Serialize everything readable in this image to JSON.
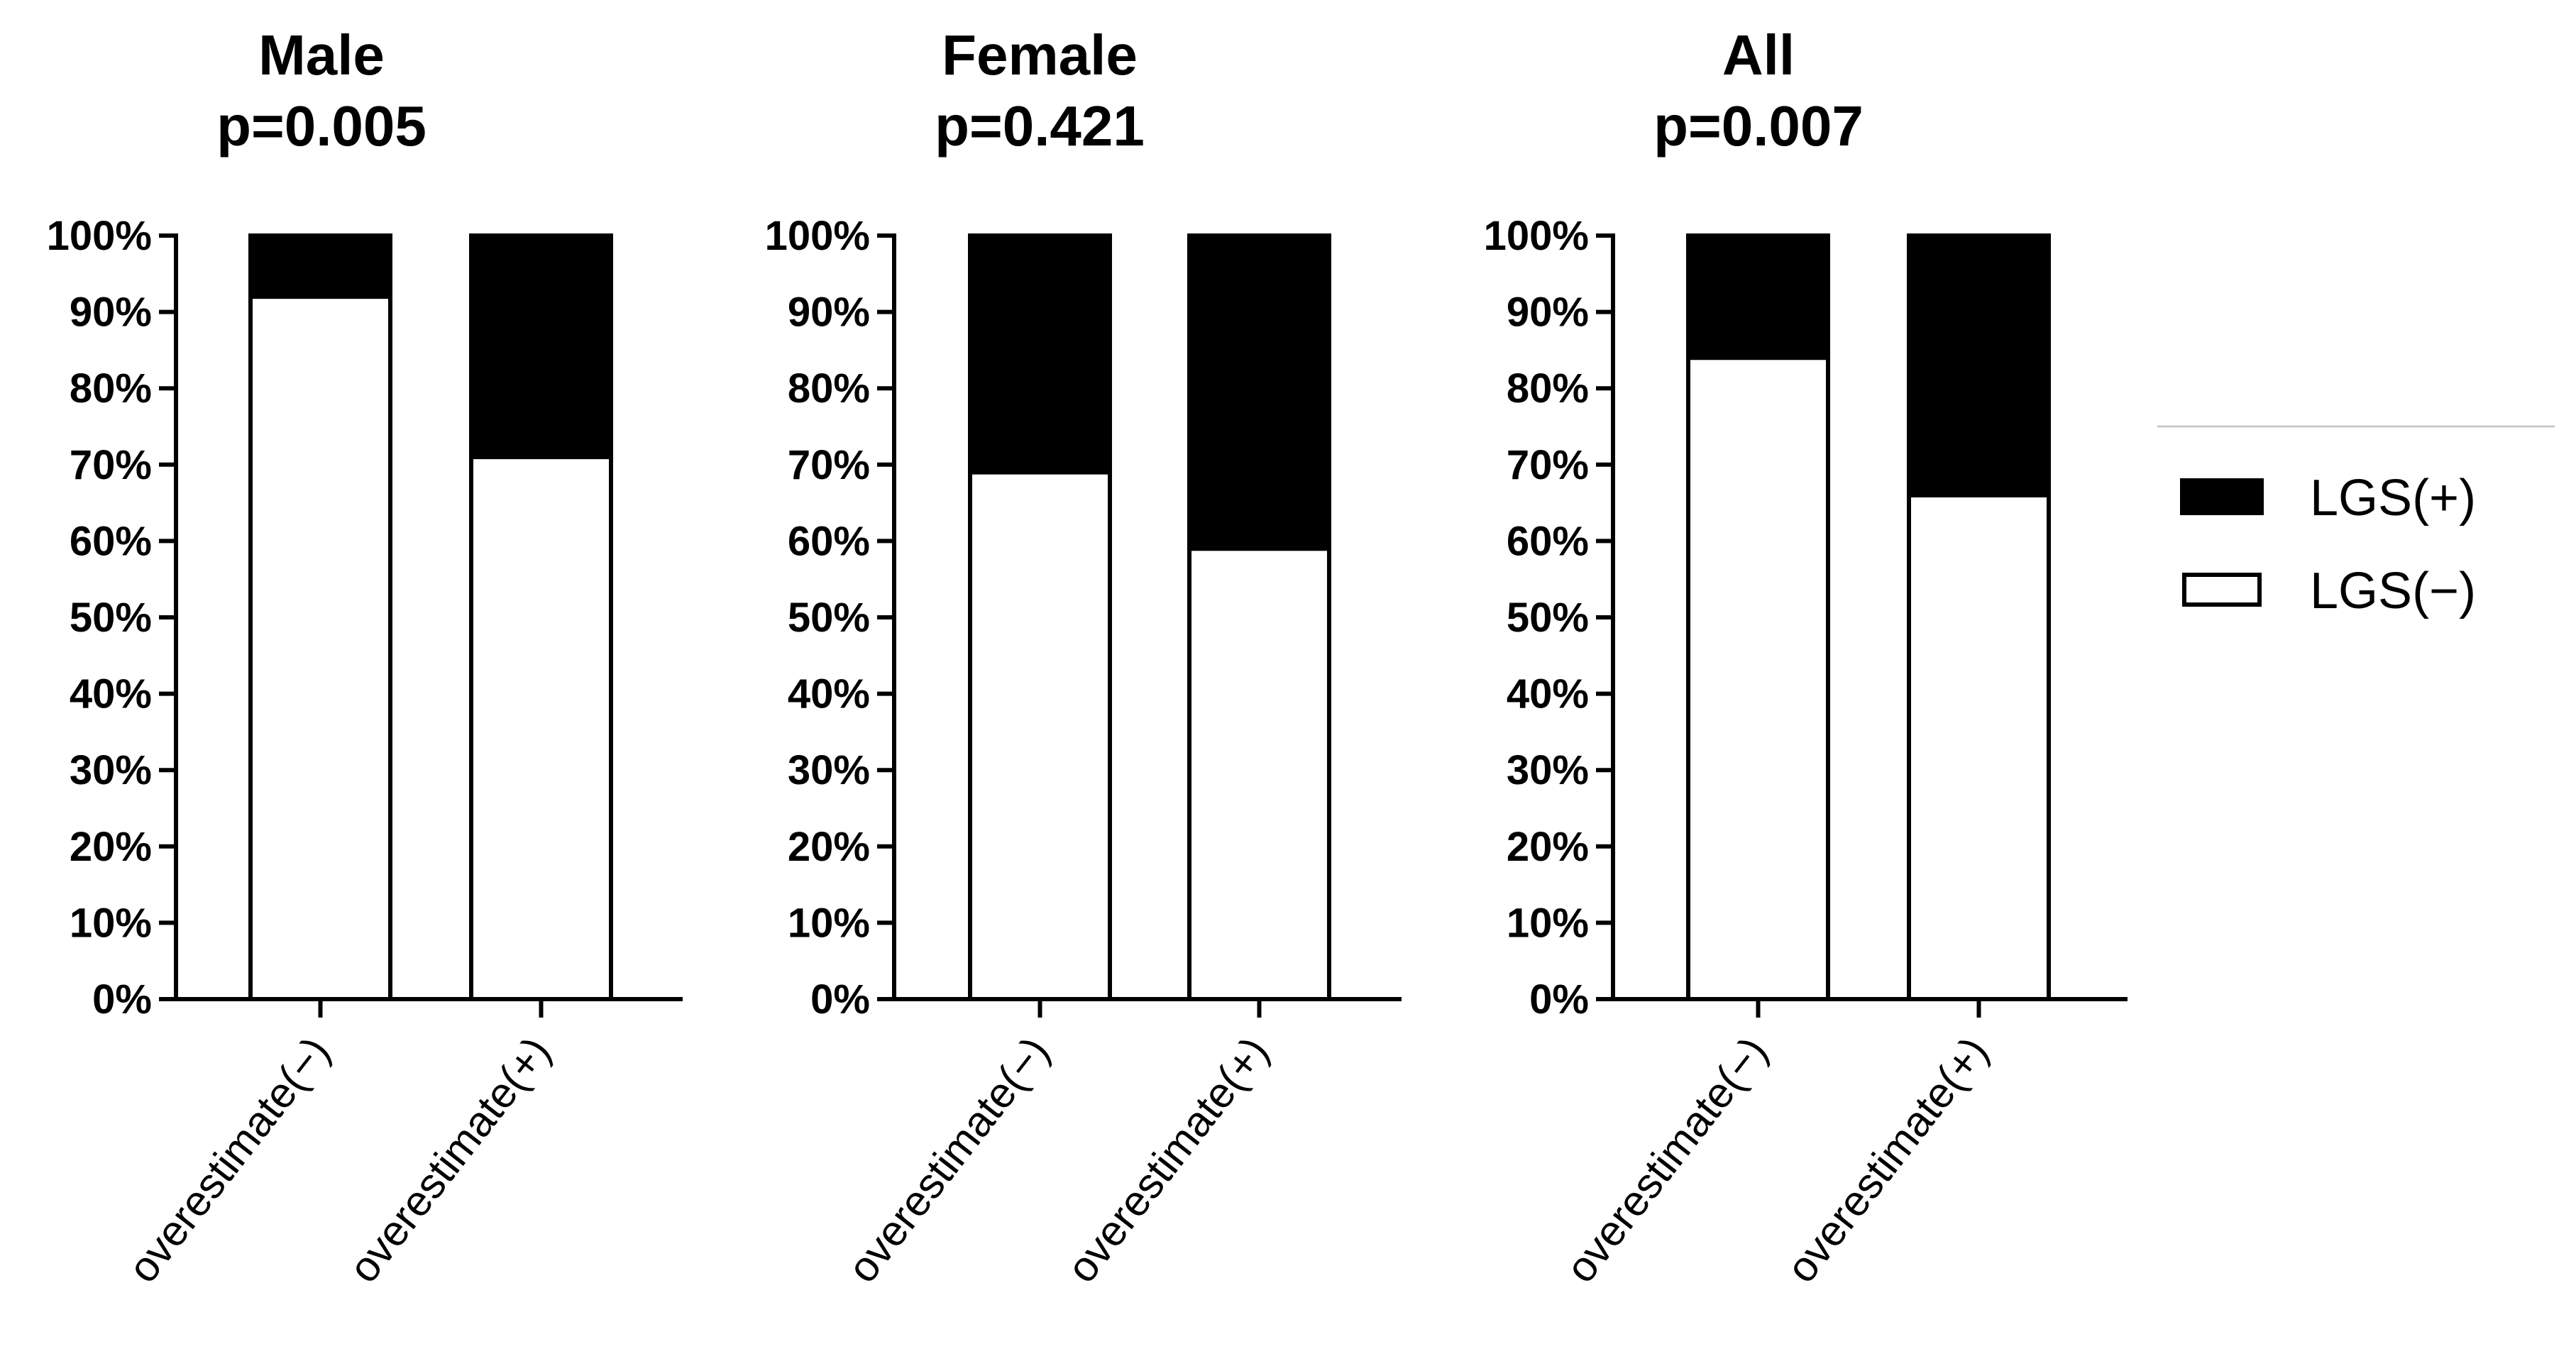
{
  "chart_data": [
    {
      "type": "bar",
      "stacked": true,
      "percent": true,
      "title": "Male",
      "subtitle": "p=0.005",
      "categories": [
        "overestimate(−)",
        "overestimate(+)"
      ],
      "series": [
        {
          "name": "LGS(−)",
          "values": [
            92,
            71
          ]
        },
        {
          "name": "LGS(+)",
          "values": [
            8,
            29
          ]
        }
      ],
      "ylim": [
        0,
        100
      ]
    },
    {
      "type": "bar",
      "stacked": true,
      "percent": true,
      "title": "Female",
      "subtitle": "p=0.421",
      "categories": [
        "overestimate(−)",
        "overestimate(+)"
      ],
      "series": [
        {
          "name": "LGS(−)",
          "values": [
            69,
            59
          ]
        },
        {
          "name": "LGS(+)",
          "values": [
            31,
            41
          ]
        }
      ],
      "ylim": [
        0,
        100
      ]
    },
    {
      "type": "bar",
      "stacked": true,
      "percent": true,
      "title": "All",
      "subtitle": "p=0.007",
      "categories": [
        "overestimate(−)",
        "overestimate(+)"
      ],
      "series": [
        {
          "name": "LGS(−)",
          "values": [
            84,
            66
          ]
        },
        {
          "name": "LGS(+)",
          "values": [
            16,
            34
          ]
        }
      ],
      "ylim": [
        0,
        100
      ]
    }
  ],
  "y_ticks": [
    "0%",
    "10%",
    "20%",
    "30%",
    "40%",
    "50%",
    "60%",
    "70%",
    "80%",
    "90%",
    "100%"
  ],
  "legend": {
    "position": "right",
    "items": [
      {
        "label": "LGS(+)",
        "fill": "#000000"
      },
      {
        "label": "LGS(−)",
        "fill": "#ffffff"
      }
    ]
  },
  "colors": {
    "positive": "#000000",
    "negative": "#ffffff",
    "stroke": "#000000"
  }
}
